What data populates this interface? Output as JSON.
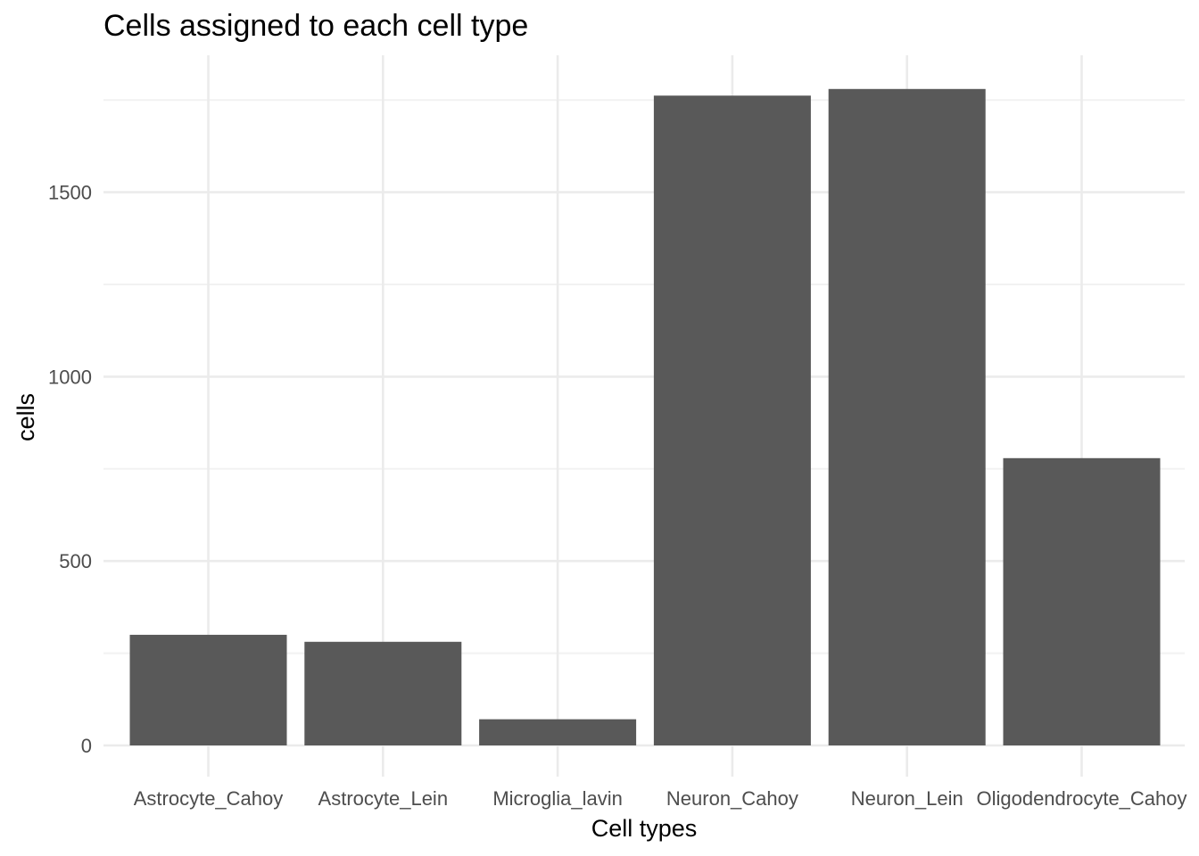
{
  "chart_data": {
    "type": "bar",
    "title": "Cells assigned to each cell type",
    "xlabel": "Cell types",
    "ylabel": "cells",
    "categories": [
      "Astrocyte_Cahoy",
      "Astrocyte_Lein",
      "Microglia_lavin",
      "Neuron_Cahoy",
      "Neuron_Lein",
      "Oligodendrocyte_Cahoy"
    ],
    "values": [
      300,
      281,
      71,
      1762,
      1780,
      779
    ],
    "ylim": [
      0,
      1870
    ],
    "yticks": [
      0,
      500,
      1000,
      1500
    ],
    "yticks_minor": [
      250,
      750,
      1250,
      1750
    ],
    "grid": true,
    "legend": "none",
    "bar_color": "#595959"
  }
}
